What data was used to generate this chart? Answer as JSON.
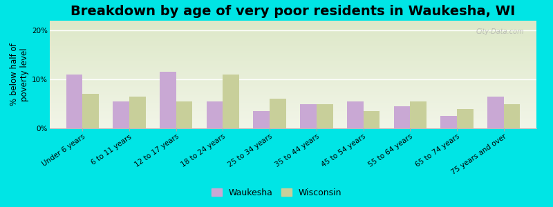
{
  "title": "Breakdown by age of very poor residents in Waukesha, WI",
  "ylabel": "% below half of\npoverty level",
  "categories": [
    "Under 6 years",
    "6 to 11 years",
    "12 to 17 years",
    "18 to 24 years",
    "25 to 34 years",
    "35 to 44 years",
    "45 to 54 years",
    "55 to 64 years",
    "65 to 74 years",
    "75 years and over"
  ],
  "waukesha": [
    11.0,
    5.5,
    11.5,
    5.5,
    3.5,
    5.0,
    5.5,
    4.5,
    2.5,
    6.5
  ],
  "wisconsin": [
    7.0,
    6.5,
    5.5,
    11.0,
    6.0,
    5.0,
    3.5,
    5.5,
    4.0,
    5.0
  ],
  "waukesha_color": "#c9a8d4",
  "wisconsin_color": "#c8cf9a",
  "background_outer": "#00e5e5",
  "background_plot_top": "#dde8c8",
  "background_plot_bottom": "#f2f5e8",
  "ylim": [
    0,
    22
  ],
  "yticks": [
    0,
    10,
    20
  ],
  "ytick_labels": [
    "0%",
    "10%",
    "20%"
  ],
  "bar_width": 0.35,
  "title_fontsize": 14,
  "axis_label_fontsize": 8.5,
  "tick_fontsize": 7.5,
  "legend_fontsize": 9,
  "watermark": "City-Data.com"
}
